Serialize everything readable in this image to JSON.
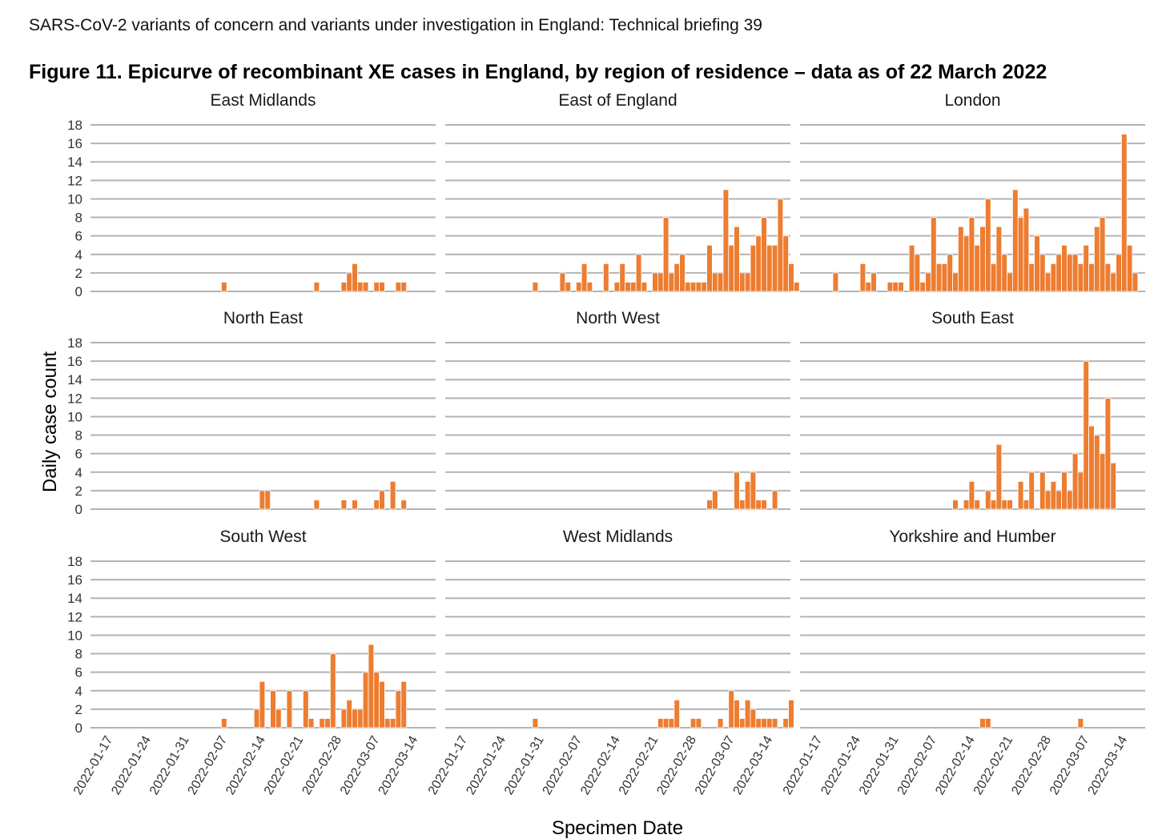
{
  "document": {
    "header": "SARS-CoV-2 variants of concern and variants under investigation in England: Technical briefing 39"
  },
  "figure": {
    "title": "Figure 11. Epicurve of recombinant XE cases in England, by region of residence – data as of 22 March 2022"
  },
  "chart_data": {
    "type": "bar",
    "title": "Figure 11. Epicurve of recombinant XE cases in England, by region of residence – data as of 22 March 2022",
    "xlabel": "Specimen Date",
    "ylabel": "Daily case count",
    "x_range": [
      "2022-01-17",
      "2022-03-16"
    ],
    "ylim": [
      0,
      18
    ],
    "y_ticks": [
      0,
      2,
      4,
      6,
      8,
      10,
      12,
      14,
      16,
      18
    ],
    "x_ticks": [
      "2022-01-17",
      "2022-01-24",
      "2022-01-31",
      "2022-02-07",
      "2022-02-14",
      "2022-02-21",
      "2022-02-28",
      "2022-03-07",
      "2022-03-14"
    ],
    "grid": "horizontal",
    "bar_color": "#ED7D31",
    "panels": [
      {
        "name": "East Midlands",
        "points": [
          [
            "2022-02-07",
            1
          ],
          [
            "2022-02-24",
            1
          ],
          [
            "2022-03-01",
            1
          ],
          [
            "2022-03-02",
            2
          ],
          [
            "2022-03-03",
            3
          ],
          [
            "2022-03-04",
            1
          ],
          [
            "2022-03-05",
            1
          ],
          [
            "2022-03-07",
            1
          ],
          [
            "2022-03-08",
            1
          ],
          [
            "2022-03-11",
            1
          ],
          [
            "2022-03-12",
            1
          ]
        ]
      },
      {
        "name": "East of England",
        "points": [
          [
            "2022-01-30",
            1
          ],
          [
            "2022-02-04",
            2
          ],
          [
            "2022-02-05",
            1
          ],
          [
            "2022-02-07",
            1
          ],
          [
            "2022-02-08",
            3
          ],
          [
            "2022-02-09",
            1
          ],
          [
            "2022-02-12",
            3
          ],
          [
            "2022-02-14",
            1
          ],
          [
            "2022-02-15",
            3
          ],
          [
            "2022-02-16",
            1
          ],
          [
            "2022-02-17",
            1
          ],
          [
            "2022-02-18",
            4
          ],
          [
            "2022-02-19",
            1
          ],
          [
            "2022-02-21",
            2
          ],
          [
            "2022-02-22",
            2
          ],
          [
            "2022-02-23",
            8
          ],
          [
            "2022-02-24",
            2
          ],
          [
            "2022-02-25",
            3
          ],
          [
            "2022-02-26",
            4
          ],
          [
            "2022-02-27",
            1
          ],
          [
            "2022-02-28",
            1
          ],
          [
            "2022-03-01",
            1
          ],
          [
            "2022-03-02",
            1
          ],
          [
            "2022-03-03",
            5
          ],
          [
            "2022-03-04",
            2
          ],
          [
            "2022-03-05",
            2
          ],
          [
            "2022-03-06",
            11
          ],
          [
            "2022-03-07",
            5
          ],
          [
            "2022-03-08",
            7
          ],
          [
            "2022-03-09",
            2
          ],
          [
            "2022-03-10",
            2
          ],
          [
            "2022-03-11",
            5
          ],
          [
            "2022-03-12",
            6
          ],
          [
            "2022-03-13",
            8
          ],
          [
            "2022-03-14",
            5
          ],
          [
            "2022-03-15",
            5
          ],
          [
            "2022-03-16",
            10
          ],
          [
            "2022-03-17",
            6
          ],
          [
            "2022-03-18",
            3
          ],
          [
            "2022-03-19",
            1
          ]
        ]
      },
      {
        "name": "London",
        "points": [
          [
            "2022-01-20",
            2
          ],
          [
            "2022-01-25",
            3
          ],
          [
            "2022-01-26",
            1
          ],
          [
            "2022-01-27",
            2
          ],
          [
            "2022-01-30",
            1
          ],
          [
            "2022-01-31",
            1
          ],
          [
            "2022-02-01",
            1
          ],
          [
            "2022-02-03",
            5
          ],
          [
            "2022-02-04",
            4
          ],
          [
            "2022-02-05",
            1
          ],
          [
            "2022-02-06",
            2
          ],
          [
            "2022-02-07",
            8
          ],
          [
            "2022-02-08",
            3
          ],
          [
            "2022-02-09",
            3
          ],
          [
            "2022-02-10",
            4
          ],
          [
            "2022-02-11",
            2
          ],
          [
            "2022-02-12",
            7
          ],
          [
            "2022-02-13",
            6
          ],
          [
            "2022-02-14",
            8
          ],
          [
            "2022-02-15",
            5
          ],
          [
            "2022-02-16",
            7
          ],
          [
            "2022-02-17",
            10
          ],
          [
            "2022-02-18",
            3
          ],
          [
            "2022-02-19",
            7
          ],
          [
            "2022-02-20",
            4
          ],
          [
            "2022-02-21",
            2
          ],
          [
            "2022-02-22",
            11
          ],
          [
            "2022-02-23",
            8
          ],
          [
            "2022-02-24",
            9
          ],
          [
            "2022-02-25",
            3
          ],
          [
            "2022-02-26",
            6
          ],
          [
            "2022-02-27",
            4
          ],
          [
            "2022-02-28",
            2
          ],
          [
            "2022-03-01",
            3
          ],
          [
            "2022-03-02",
            4
          ],
          [
            "2022-03-03",
            5
          ],
          [
            "2022-03-04",
            4
          ],
          [
            "2022-03-05",
            4
          ],
          [
            "2022-03-06",
            3
          ],
          [
            "2022-03-07",
            5
          ],
          [
            "2022-03-08",
            3
          ],
          [
            "2022-03-09",
            7
          ],
          [
            "2022-03-10",
            8
          ],
          [
            "2022-03-11",
            3
          ],
          [
            "2022-03-12",
            2
          ],
          [
            "2022-03-13",
            4
          ],
          [
            "2022-03-14",
            17
          ],
          [
            "2022-03-15",
            5
          ],
          [
            "2022-03-16",
            2
          ]
        ]
      },
      {
        "name": "North East",
        "points": [
          [
            "2022-02-14",
            2
          ],
          [
            "2022-02-15",
            2
          ],
          [
            "2022-02-24",
            1
          ],
          [
            "2022-03-01",
            1
          ],
          [
            "2022-03-03",
            1
          ],
          [
            "2022-03-07",
            1
          ],
          [
            "2022-03-08",
            2
          ],
          [
            "2022-03-10",
            3
          ],
          [
            "2022-03-12",
            1
          ]
        ]
      },
      {
        "name": "North West",
        "points": [
          [
            "2022-03-03",
            1
          ],
          [
            "2022-03-04",
            2
          ],
          [
            "2022-03-08",
            4
          ],
          [
            "2022-03-09",
            1
          ],
          [
            "2022-03-10",
            3
          ],
          [
            "2022-03-11",
            4
          ],
          [
            "2022-03-12",
            1
          ],
          [
            "2022-03-13",
            1
          ],
          [
            "2022-03-15",
            2
          ]
        ]
      },
      {
        "name": "South East",
        "points": [
          [
            "2022-02-11",
            1
          ],
          [
            "2022-02-13",
            1
          ],
          [
            "2022-02-14",
            3
          ],
          [
            "2022-02-15",
            1
          ],
          [
            "2022-02-17",
            2
          ],
          [
            "2022-02-18",
            1
          ],
          [
            "2022-02-19",
            7
          ],
          [
            "2022-02-20",
            1
          ],
          [
            "2022-02-21",
            1
          ],
          [
            "2022-02-23",
            3
          ],
          [
            "2022-02-24",
            1
          ],
          [
            "2022-02-25",
            4
          ],
          [
            "2022-02-27",
            4
          ],
          [
            "2022-02-28",
            2
          ],
          [
            "2022-03-01",
            3
          ],
          [
            "2022-03-02",
            2
          ],
          [
            "2022-03-03",
            4
          ],
          [
            "2022-03-04",
            2
          ],
          [
            "2022-03-05",
            6
          ],
          [
            "2022-03-06",
            4
          ],
          [
            "2022-03-07",
            16
          ],
          [
            "2022-03-08",
            9
          ],
          [
            "2022-03-09",
            8
          ],
          [
            "2022-03-10",
            6
          ],
          [
            "2022-03-11",
            12
          ],
          [
            "2022-03-12",
            5
          ]
        ]
      },
      {
        "name": "South West",
        "points": [
          [
            "2022-02-07",
            1
          ],
          [
            "2022-02-13",
            2
          ],
          [
            "2022-02-14",
            5
          ],
          [
            "2022-02-16",
            4
          ],
          [
            "2022-02-17",
            2
          ],
          [
            "2022-02-19",
            4
          ],
          [
            "2022-02-22",
            4
          ],
          [
            "2022-02-23",
            1
          ],
          [
            "2022-02-25",
            1
          ],
          [
            "2022-02-26",
            1
          ],
          [
            "2022-02-27",
            8
          ],
          [
            "2022-03-01",
            2
          ],
          [
            "2022-03-02",
            3
          ],
          [
            "2022-03-03",
            2
          ],
          [
            "2022-03-04",
            2
          ],
          [
            "2022-03-05",
            6
          ],
          [
            "2022-03-06",
            9
          ],
          [
            "2022-03-07",
            6
          ],
          [
            "2022-03-08",
            5
          ],
          [
            "2022-03-09",
            1
          ],
          [
            "2022-03-10",
            1
          ],
          [
            "2022-03-11",
            4
          ],
          [
            "2022-03-12",
            5
          ]
        ]
      },
      {
        "name": "West Midlands",
        "points": [
          [
            "2022-01-30",
            1
          ],
          [
            "2022-02-22",
            1
          ],
          [
            "2022-02-23",
            1
          ],
          [
            "2022-02-24",
            1
          ],
          [
            "2022-02-25",
            3
          ],
          [
            "2022-02-28",
            1
          ],
          [
            "2022-03-01",
            1
          ],
          [
            "2022-03-05",
            1
          ],
          [
            "2022-03-07",
            4
          ],
          [
            "2022-03-08",
            3
          ],
          [
            "2022-03-09",
            1
          ],
          [
            "2022-03-10",
            3
          ],
          [
            "2022-03-11",
            2
          ],
          [
            "2022-03-12",
            1
          ],
          [
            "2022-03-13",
            1
          ],
          [
            "2022-03-14",
            1
          ],
          [
            "2022-03-15",
            1
          ],
          [
            "2022-03-17",
            1
          ],
          [
            "2022-03-18",
            3
          ]
        ]
      },
      {
        "name": "Yorkshire and Humber",
        "points": [
          [
            "2022-02-16",
            1
          ],
          [
            "2022-02-17",
            1
          ],
          [
            "2022-03-06",
            1
          ]
        ]
      }
    ]
  }
}
